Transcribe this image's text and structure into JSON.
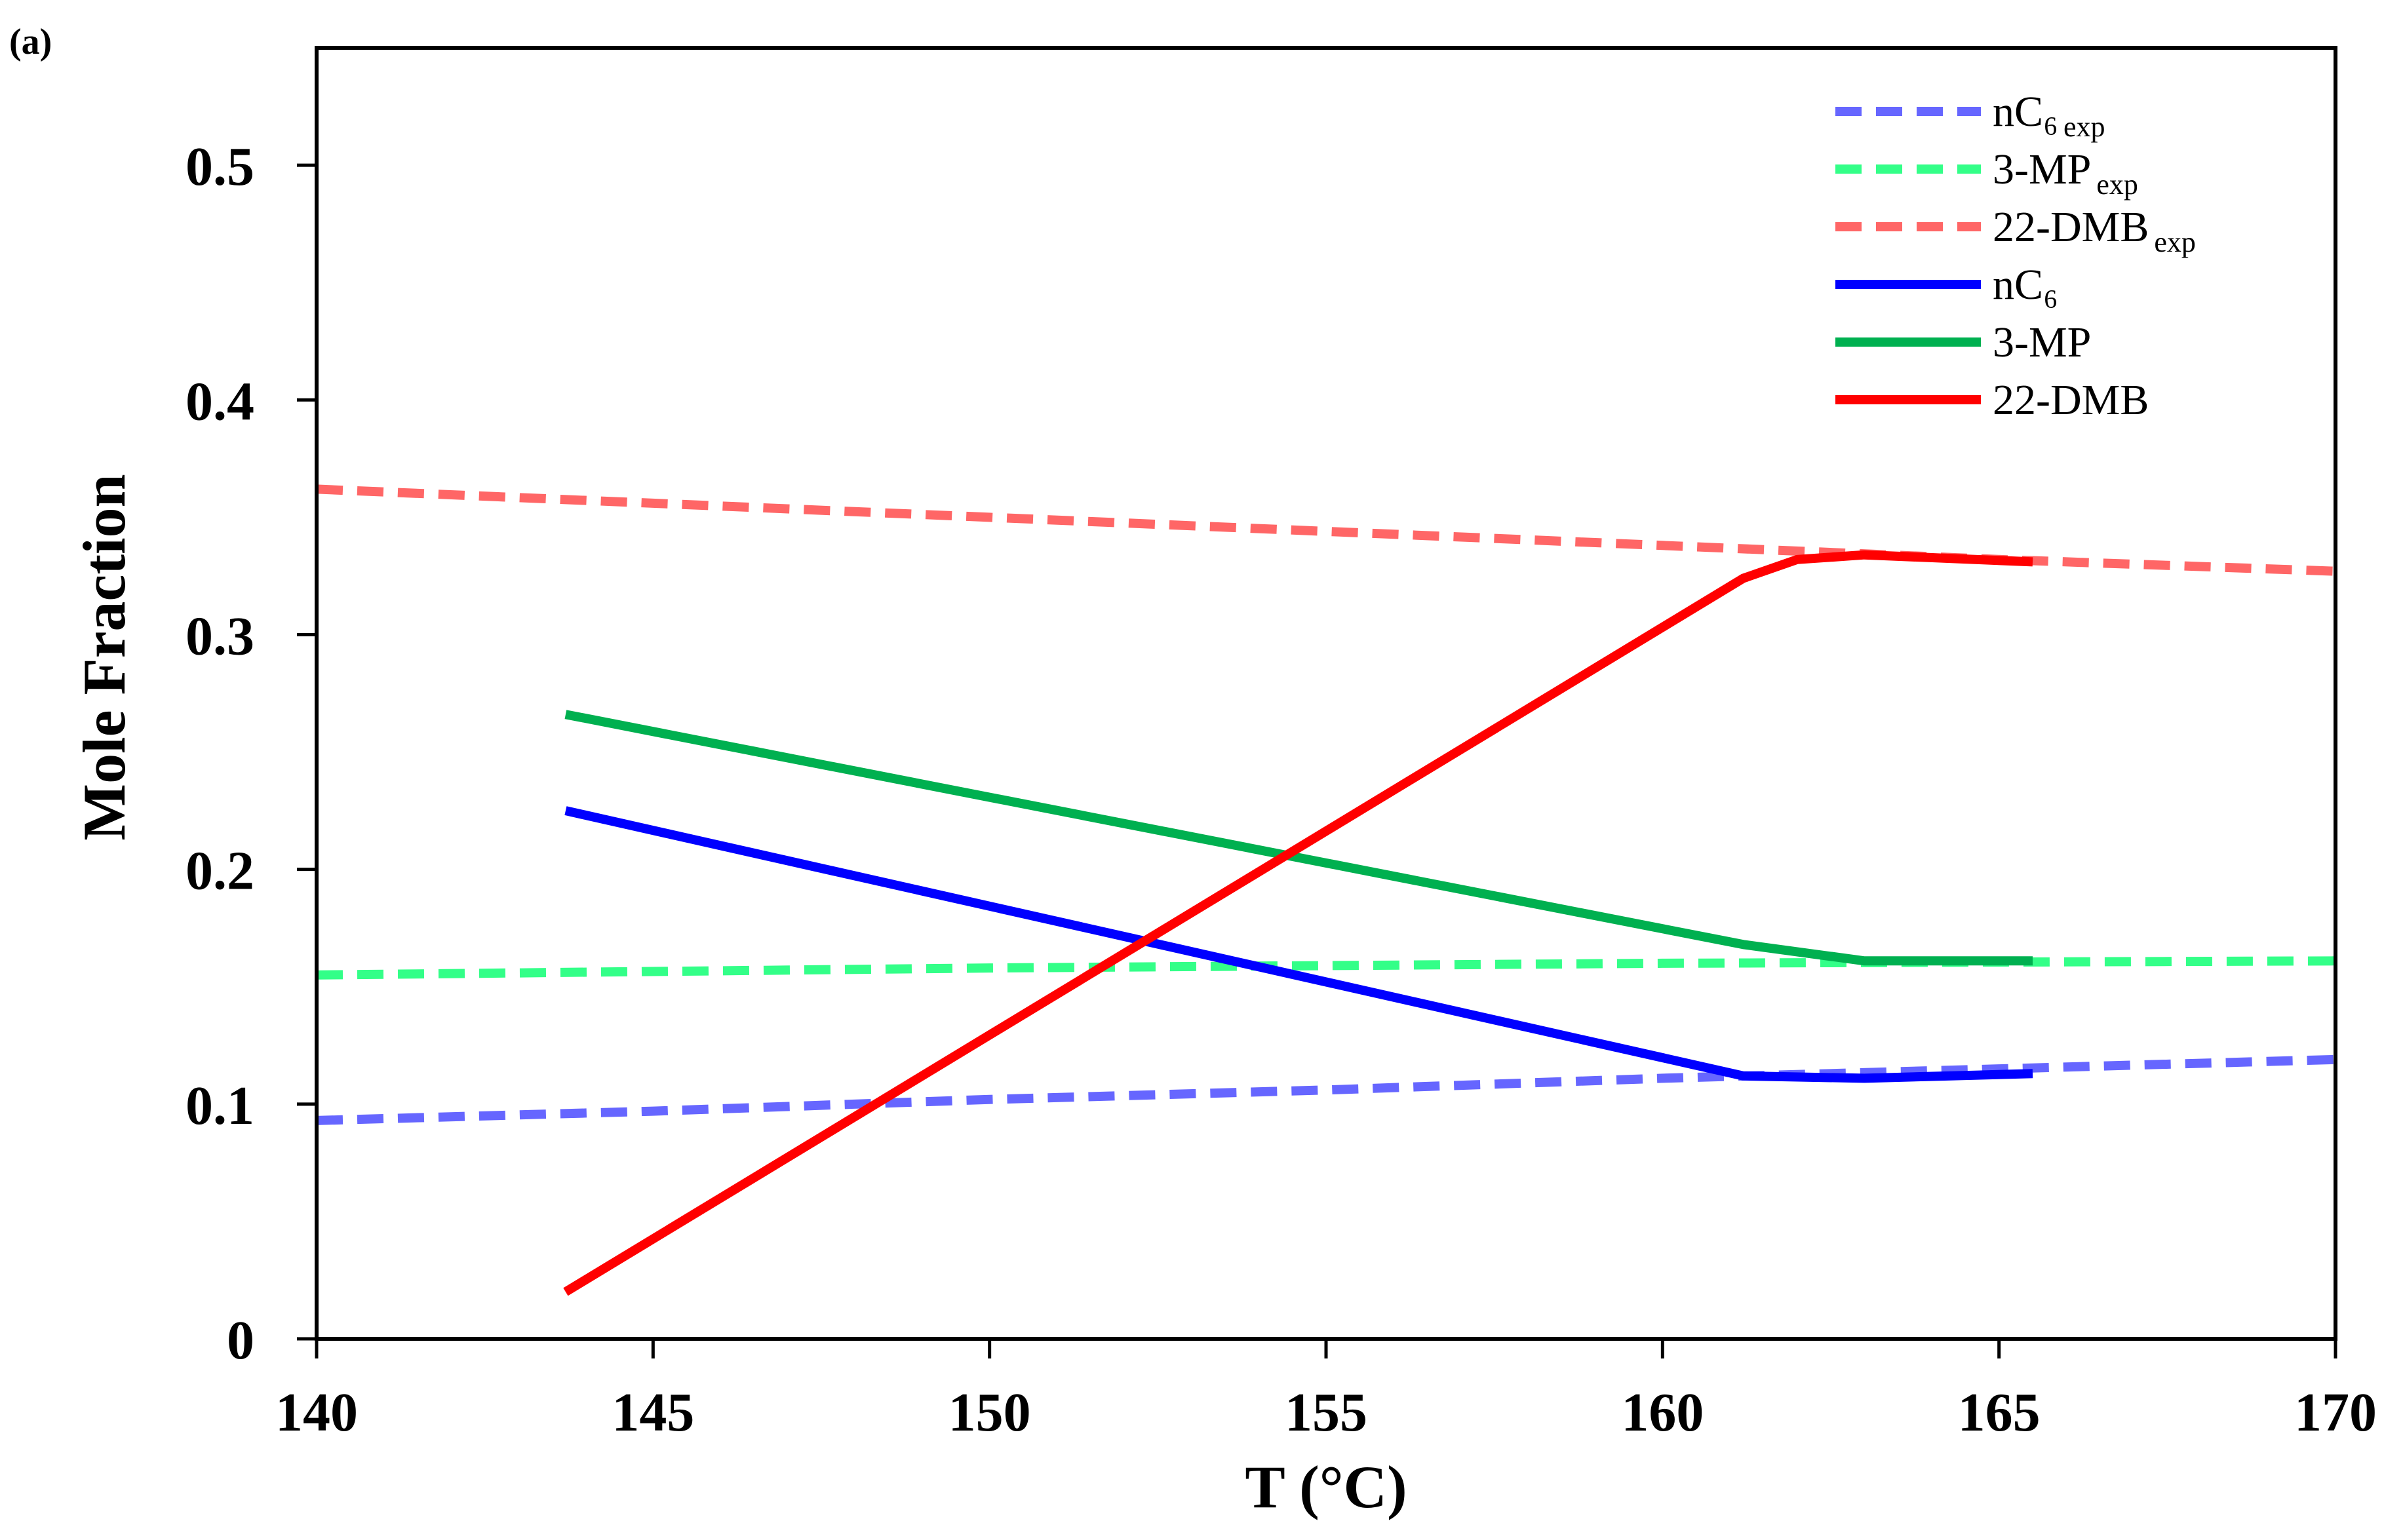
{
  "chart_data": {
    "type": "line",
    "panel_label": "(a)",
    "xlabel": "T (°C)",
    "ylabel": "Mole Fraction",
    "xlim": [
      140,
      170
    ],
    "ylim": [
      0,
      0.55
    ],
    "x_ticks": [
      "140",
      "145",
      "150",
      "155",
      "160",
      "165",
      "170"
    ],
    "y_ticks": [
      "0",
      "0.1",
      "0.2",
      "0.3",
      "0.4",
      "0.5"
    ],
    "grid": false,
    "legend_position": "top-right",
    "series": [
      {
        "name": "nC₆",
        "name_sub": "exp",
        "color": "#6666ff",
        "dashed": true,
        "x": [
          140,
          145,
          150,
          155,
          160,
          165,
          170
        ],
        "y": [
          0.093,
          0.097,
          0.102,
          0.106,
          0.111,
          0.115,
          0.119
        ]
      },
      {
        "name": "3-MP",
        "name_sub": "exp",
        "color": "#33ff88",
        "dashed": true,
        "x": [
          140,
          150,
          160,
          170
        ],
        "y": [
          0.155,
          0.158,
          0.16,
          0.161
        ]
      },
      {
        "name": "22-DMB",
        "name_sub": "exp",
        "color": "#ff6666",
        "dashed": true,
        "x": [
          140,
          145,
          150,
          155,
          160,
          165,
          170
        ],
        "y": [
          0.362,
          0.356,
          0.35,
          0.344,
          0.338,
          0.332,
          0.327
        ]
      },
      {
        "name": "nC₆",
        "name_sub": "",
        "color": "#0000ff",
        "dashed": false,
        "x": [
          143.7,
          161.2,
          163,
          165.5
        ],
        "y": [
          0.225,
          0.112,
          0.111,
          0.113
        ]
      },
      {
        "name": "3-MP",
        "name_sub": "",
        "color": "#00b050",
        "dashed": false,
        "x": [
          143.7,
          161.2,
          163,
          165.5
        ],
        "y": [
          0.266,
          0.168,
          0.161,
          0.161
        ]
      },
      {
        "name": "22-DMB",
        "name_sub": "",
        "color": "#ff0000",
        "dashed": false,
        "x": [
          143.7,
          161.2,
          162,
          163,
          165.5
        ],
        "y": [
          0.02,
          0.324,
          0.332,
          0.334,
          0.331
        ]
      }
    ]
  }
}
